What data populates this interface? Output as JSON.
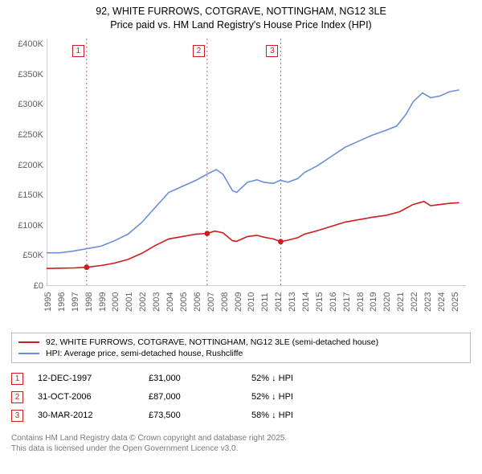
{
  "title": {
    "line1": "92, WHITE FURROWS, COTGRAVE, NOTTINGHAM, NG12 3LE",
    "line2": "Price paid vs. HM Land Registry's House Price Index (HPI)"
  },
  "chart": {
    "type": "line",
    "background_color": "#ffffff",
    "axis_color": "#9e9e9e",
    "tick_label_color": "#616161",
    "tick_label_fontsize": 11,
    "x": {
      "min": 1995,
      "max": 2025.9,
      "ticks": [
        1995,
        1996,
        1997,
        1998,
        1999,
        2000,
        2001,
        2002,
        2003,
        2004,
        2005,
        2006,
        2007,
        2008,
        2009,
        2010,
        2011,
        2012,
        2013,
        2014,
        2015,
        2016,
        2017,
        2018,
        2019,
        2020,
        2021,
        2022,
        2023,
        2024,
        2025
      ]
    },
    "y": {
      "min": 0,
      "max": 410000,
      "ticks": [
        0,
        50000,
        100000,
        150000,
        200000,
        250000,
        300000,
        350000,
        400000
      ],
      "tick_labels": [
        "£0",
        "£50K",
        "£100K",
        "£150K",
        "£200K",
        "£250K",
        "£300K",
        "£350K",
        "£400K"
      ]
    },
    "series": [
      {
        "id": "hpi",
        "color": "#6a8fd8",
        "width": 1.6,
        "points": [
          [
            1995,
            55000
          ],
          [
            1996,
            55000
          ],
          [
            1997,
            58000
          ],
          [
            1998,
            62000
          ],
          [
            1999,
            66000
          ],
          [
            2000,
            75000
          ],
          [
            2001,
            86000
          ],
          [
            2002,
            105000
          ],
          [
            2003,
            130000
          ],
          [
            2004,
            155000
          ],
          [
            2005,
            165000
          ],
          [
            2006,
            175000
          ],
          [
            2006.8,
            185000
          ],
          [
            2007.5,
            193000
          ],
          [
            2008,
            185000
          ],
          [
            2008.7,
            158000
          ],
          [
            2009,
            155000
          ],
          [
            2009.8,
            172000
          ],
          [
            2010.5,
            176000
          ],
          [
            2011,
            172000
          ],
          [
            2011.7,
            170000
          ],
          [
            2012.2,
            175000
          ],
          [
            2012.8,
            172000
          ],
          [
            2013.5,
            178000
          ],
          [
            2014,
            188000
          ],
          [
            2015,
            200000
          ],
          [
            2016,
            215000
          ],
          [
            2017,
            230000
          ],
          [
            2018,
            240000
          ],
          [
            2019,
            250000
          ],
          [
            2020,
            258000
          ],
          [
            2020.8,
            265000
          ],
          [
            2021.5,
            285000
          ],
          [
            2022,
            305000
          ],
          [
            2022.7,
            320000
          ],
          [
            2023.3,
            312000
          ],
          [
            2024,
            315000
          ],
          [
            2024.7,
            322000
          ],
          [
            2025.4,
            325000
          ]
        ]
      },
      {
        "id": "price",
        "color": "#cc1e1e",
        "width": 1.8,
        "points": [
          [
            1995,
            29000
          ],
          [
            1996,
            29500
          ],
          [
            1997,
            30000
          ],
          [
            1997.95,
            31000
          ],
          [
            1999,
            34000
          ],
          [
            2000,
            38000
          ],
          [
            2001,
            44000
          ],
          [
            2002,
            54000
          ],
          [
            2003,
            67000
          ],
          [
            2004,
            78000
          ],
          [
            2005,
            82000
          ],
          [
            2006,
            86000
          ],
          [
            2006.83,
            87000
          ],
          [
            2007.4,
            91000
          ],
          [
            2008,
            88000
          ],
          [
            2008.7,
            75000
          ],
          [
            2009,
            74000
          ],
          [
            2009.8,
            82000
          ],
          [
            2010.5,
            84000
          ],
          [
            2011,
            81000
          ],
          [
            2011.7,
            78000
          ],
          [
            2012.25,
            73500
          ],
          [
            2012.8,
            76000
          ],
          [
            2013.5,
            80000
          ],
          [
            2014,
            86000
          ],
          [
            2015,
            92000
          ],
          [
            2016,
            99000
          ],
          [
            2017,
            106000
          ],
          [
            2018,
            110000
          ],
          [
            2019,
            114000
          ],
          [
            2020,
            117000
          ],
          [
            2021,
            123000
          ],
          [
            2022,
            135000
          ],
          [
            2022.8,
            140000
          ],
          [
            2023.3,
            133000
          ],
          [
            2024,
            135000
          ],
          [
            2024.7,
            137000
          ],
          [
            2025.4,
            138000
          ]
        ]
      }
    ],
    "sale_dots": {
      "color": "#cc1e1e",
      "radius": 3.4,
      "points": [
        [
          1997.95,
          31000
        ],
        [
          2006.83,
          87000
        ],
        [
          2012.25,
          73500
        ]
      ]
    },
    "event_markers": [
      {
        "n": "1",
        "x": 1997.95,
        "box_color": "#cc1e1e"
      },
      {
        "n": "2",
        "x": 2006.83,
        "box_color": "#cc1e1e"
      },
      {
        "n": "3",
        "x": 2012.25,
        "box_color": "#cc1e1e"
      }
    ],
    "vline_color": "#d85a5a"
  },
  "legend": {
    "border_color": "#bcbcbc",
    "rows": [
      {
        "color": "#cc1e1e",
        "label": "92, WHITE FURROWS, COTGRAVE, NOTTINGHAM, NG12 3LE (semi-detached house)"
      },
      {
        "color": "#6a8fd8",
        "label": "HPI: Average price, semi-detached house, Rushcliffe"
      }
    ]
  },
  "events": [
    {
      "n": "1",
      "color": "#cc1e1e",
      "date": "12-DEC-1997",
      "price": "£31,000",
      "pct": "52% ↓ HPI"
    },
    {
      "n": "2",
      "color": "#cc1e1e",
      "date": "31-OCT-2006",
      "price": "£87,000",
      "pct": "52% ↓ HPI"
    },
    {
      "n": "3",
      "color": "#cc1e1e",
      "date": "30-MAR-2012",
      "price": "£73,500",
      "pct": "58% ↓ HPI"
    }
  ],
  "footer": {
    "line1": "Contains HM Land Registry data © Crown copyright and database right 2025.",
    "line2": "This data is licensed under the Open Government Licence v3.0."
  }
}
